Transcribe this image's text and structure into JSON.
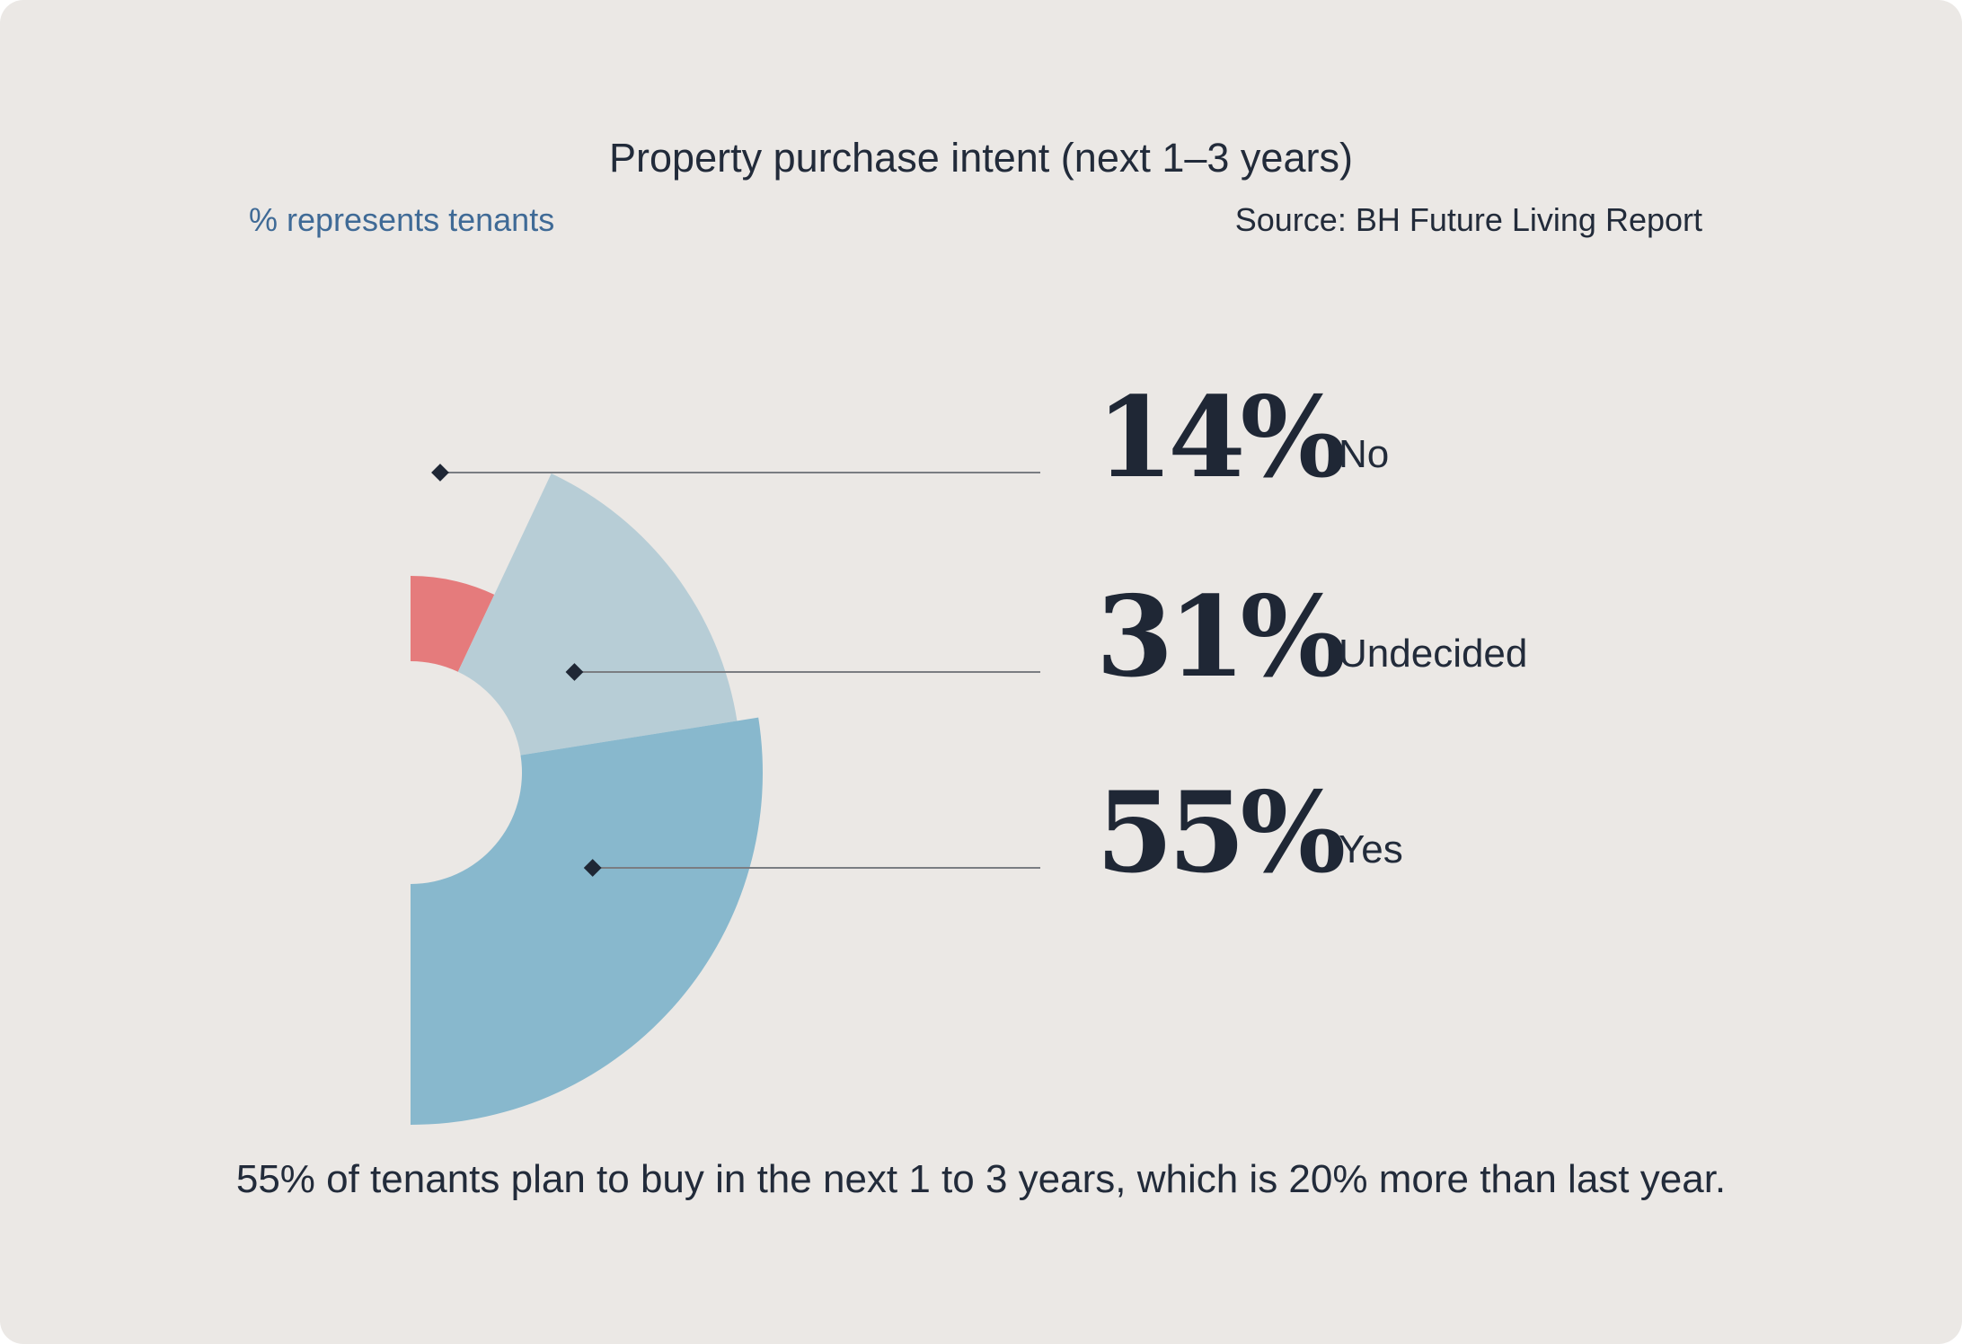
{
  "title": "Property purchase intent (next 1–3 years)",
  "subtitle": "% represents tenants",
  "source": "Source: BH Future Living Report",
  "footer": "55% of tenants plan to buy in the next 1 to 3 years, which is 20% more than last year.",
  "chart_data": {
    "type": "pie",
    "title": "Property purchase intent (next 1–3 years)",
    "unit": "%",
    "slices": [
      {
        "label": "No",
        "value": 14,
        "display": "14%",
        "color": "#e57b7c"
      },
      {
        "label": "Undecided",
        "value": 31,
        "display": "31%",
        "color": "#b7cdd6"
      },
      {
        "label": "Yes",
        "value": 55,
        "display": "55%",
        "color": "#88b8cd"
      }
    ],
    "legend": "right"
  }
}
